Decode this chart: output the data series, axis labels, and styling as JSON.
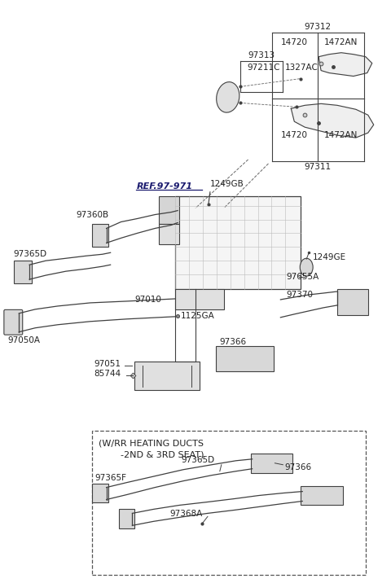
{
  "bg_color": "#ffffff",
  "fig_width": 4.8,
  "fig_height": 7.16,
  "dpi": 100,
  "line_color": "#404040",
  "text_color": "#222222",
  "ref_color": "#1a1a6e",
  "labels": {
    "97312": "97312",
    "14720": "14720",
    "1472AN": "1472AN",
    "97313": "97313",
    "1327AC": "1327AC",
    "97211C": "97211C",
    "97311": "97311",
    "REF_97971": "REF.97-971",
    "1249GB": "1249GB",
    "97360B": "97360B",
    "97365D": "97365D",
    "97010": "97010",
    "97050A": "97050A",
    "1125GA": "1125GA",
    "97366": "97366",
    "97370": "97370",
    "1249GE": "1249GE",
    "97655A": "97655A",
    "97051": "97051",
    "85744": "85744",
    "inset_title1": "(W/RR HEATING DUCTS",
    "inset_title2": "-2ND & 3RD SEAT)",
    "97365F": "97365F",
    "97368A": "97368A"
  }
}
